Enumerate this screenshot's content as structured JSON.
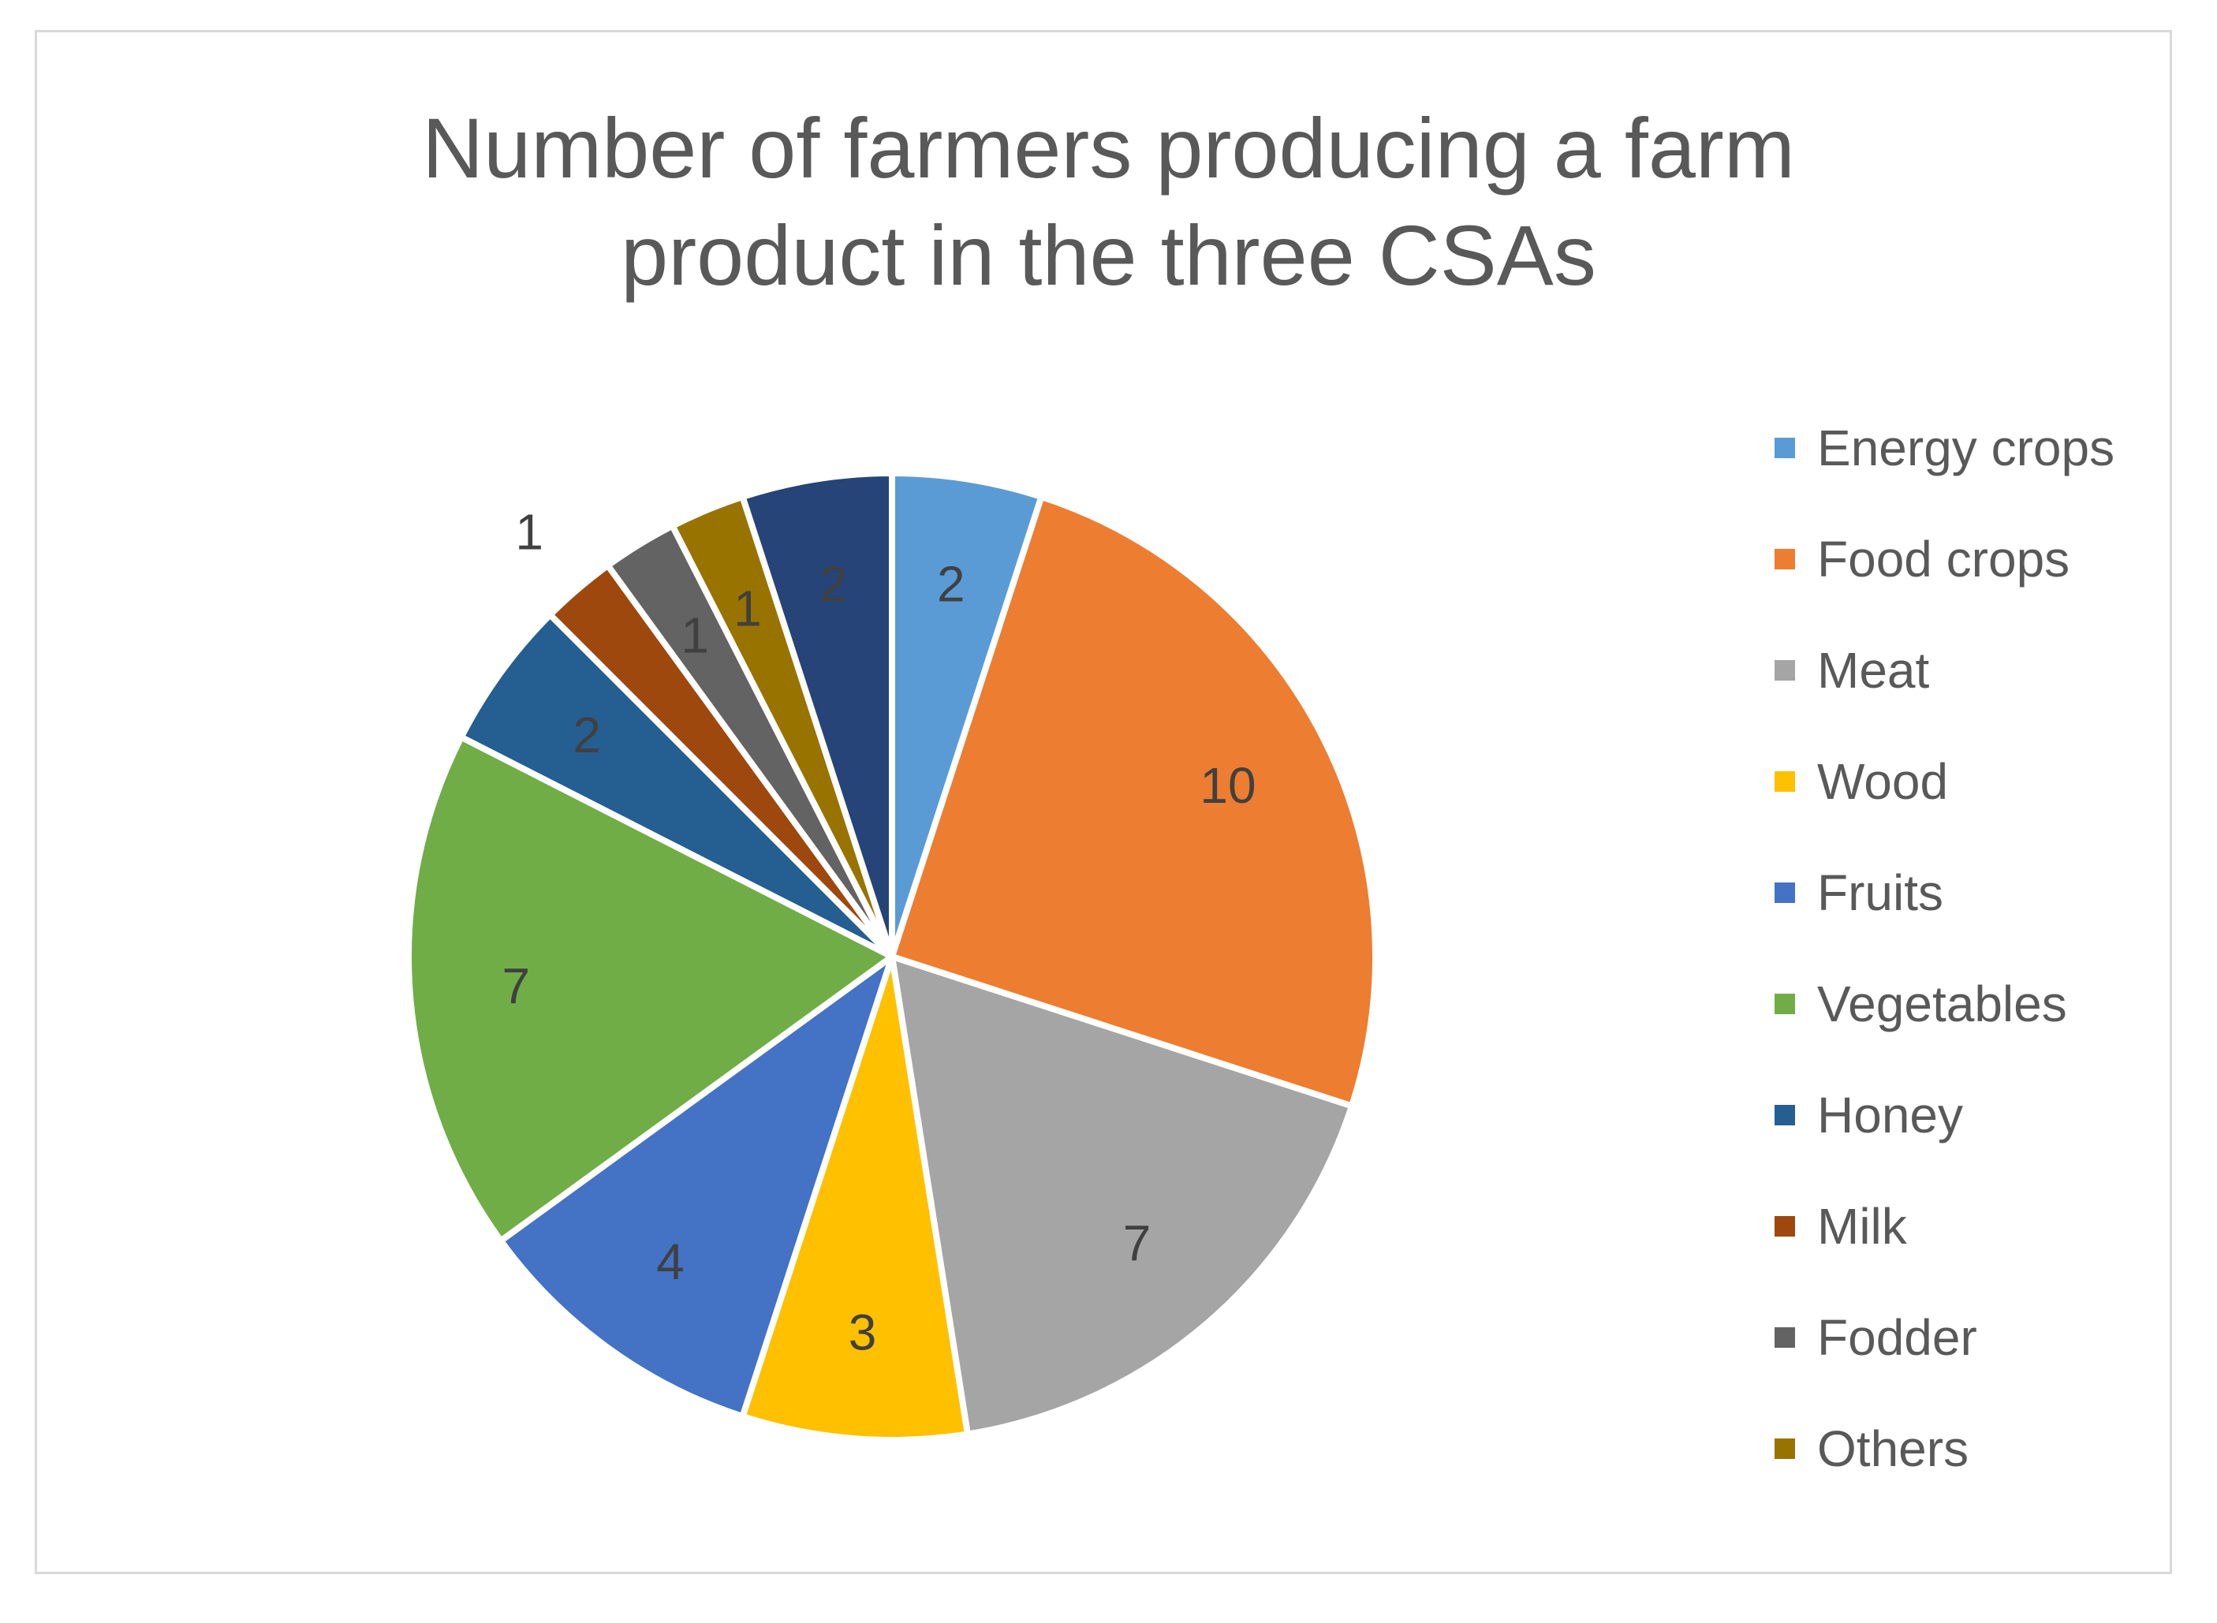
{
  "chart_data": {
    "type": "pie",
    "title": "Number of farmers producing a farm\nproduct in the three CSAs",
    "legend_position": "right",
    "start_angle": "12 o'clock, clockwise",
    "slices": [
      {
        "label": "Energy crops",
        "value": 2,
        "color": "#5b9bd5",
        "label_outside": false
      },
      {
        "label": "Food crops",
        "value": 10,
        "color": "#ed7d31",
        "label_outside": false
      },
      {
        "label": "Meat",
        "value": 7,
        "color": "#a5a5a5",
        "label_outside": false
      },
      {
        "label": "Wood",
        "value": 3,
        "color": "#ffc000",
        "label_outside": false
      },
      {
        "label": "Fruits",
        "value": 4,
        "color": "#4472c4",
        "label_outside": false
      },
      {
        "label": "Vegetables",
        "value": 7,
        "color": "#70ad47",
        "label_outside": false
      },
      {
        "label": "Honey",
        "value": 2,
        "color": "#255e91",
        "label_outside": false
      },
      {
        "label": "Milk",
        "value": 1,
        "color": "#9e480e",
        "label_outside": true
      },
      {
        "label": "Fodder",
        "value": 1,
        "color": "#636363",
        "label_outside": false
      },
      {
        "label": "Others",
        "value": 1,
        "color": "#997300",
        "label_outside": false
      },
      {
        "label": "",
        "value": 2,
        "color": "#264478",
        "label_outside": false
      }
    ]
  }
}
